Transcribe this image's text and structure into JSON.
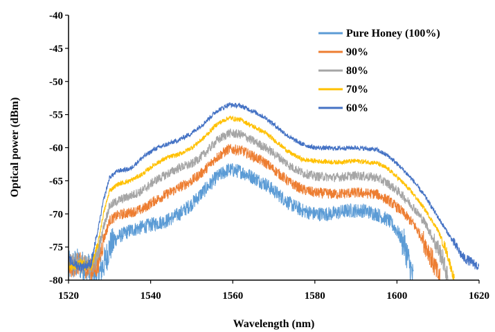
{
  "chart_data": {
    "type": "line",
    "xlabel": "Wavelength (nm)",
    "ylabel": "Optical power (dBm)",
    "xlim": [
      1520,
      1620
    ],
    "ylim": [
      -80,
      -40
    ],
    "xticks": [
      1520,
      1540,
      1560,
      1580,
      1600,
      1620
    ],
    "yticks": [
      -40,
      -45,
      -50,
      -55,
      -60,
      -65,
      -70,
      -75,
      -80
    ],
    "grid": false,
    "legend_position": "top-right",
    "series": [
      {
        "name": "Pure Honey (100%)",
        "color": "#5B9BD5",
        "noise": 1.1,
        "points": [
          [
            1520,
            -78
          ],
          [
            1522,
            -77.5
          ],
          [
            1524,
            -78
          ],
          [
            1526,
            -78.5
          ],
          [
            1527.5,
            -79
          ],
          [
            1529,
            -77
          ],
          [
            1530,
            -75
          ],
          [
            1532,
            -73.5
          ],
          [
            1535,
            -72.5
          ],
          [
            1538,
            -72
          ],
          [
            1541,
            -71.5
          ],
          [
            1544,
            -71
          ],
          [
            1547,
            -70
          ],
          [
            1550,
            -68.5
          ],
          [
            1553,
            -66.5
          ],
          [
            1556,
            -64.5
          ],
          [
            1559,
            -63.3
          ],
          [
            1562,
            -63.6
          ],
          [
            1565,
            -64.5
          ],
          [
            1568,
            -65.5
          ],
          [
            1571,
            -67
          ],
          [
            1574,
            -68.5
          ],
          [
            1577,
            -69.5
          ],
          [
            1580,
            -70
          ],
          [
            1584,
            -70
          ],
          [
            1588,
            -69.5
          ],
          [
            1592,
            -69.5
          ],
          [
            1595,
            -70
          ],
          [
            1598,
            -71
          ],
          [
            1600,
            -72.5
          ],
          [
            1602,
            -75
          ],
          [
            1603,
            -77.5
          ],
          [
            1604,
            -80
          ]
        ]
      },
      {
        "name": "90%",
        "color": "#ED7D31",
        "noise": 0.8,
        "points": [
          [
            1520,
            -78
          ],
          [
            1523,
            -77.5
          ],
          [
            1525.5,
            -78.5
          ],
          [
            1527,
            -78
          ],
          [
            1528.5,
            -74
          ],
          [
            1530,
            -71
          ],
          [
            1532,
            -70.2
          ],
          [
            1535,
            -69.8
          ],
          [
            1538,
            -69.3
          ],
          [
            1541,
            -68
          ],
          [
            1544,
            -67
          ],
          [
            1547,
            -66
          ],
          [
            1550,
            -65
          ],
          [
            1553,
            -63.5
          ],
          [
            1556,
            -61.5
          ],
          [
            1559,
            -60.2
          ],
          [
            1562,
            -60.4
          ],
          [
            1565,
            -61.3
          ],
          [
            1568,
            -62.3
          ],
          [
            1571,
            -63.8
          ],
          [
            1574,
            -65.3
          ],
          [
            1577,
            -66.3
          ],
          [
            1580,
            -66.8
          ],
          [
            1585,
            -67
          ],
          [
            1590,
            -66.8
          ],
          [
            1595,
            -67
          ],
          [
            1598,
            -68
          ],
          [
            1601,
            -69.5
          ],
          [
            1604,
            -71.5
          ],
          [
            1606,
            -73.5
          ],
          [
            1608,
            -76
          ],
          [
            1609.5,
            -78.5
          ],
          [
            1610.5,
            -80
          ]
        ]
      },
      {
        "name": "80%",
        "color": "#A5A5A5",
        "noise": 0.7,
        "points": [
          [
            1520,
            -77
          ],
          [
            1523,
            -77.5
          ],
          [
            1525.5,
            -78
          ],
          [
            1527,
            -76.5
          ],
          [
            1528.5,
            -72
          ],
          [
            1530,
            -68.8
          ],
          [
            1532,
            -68
          ],
          [
            1535,
            -67.3
          ],
          [
            1538,
            -66.5
          ],
          [
            1541,
            -65
          ],
          [
            1544,
            -64
          ],
          [
            1547,
            -63
          ],
          [
            1550,
            -62.5
          ],
          [
            1553,
            -61
          ],
          [
            1556,
            -59
          ],
          [
            1559,
            -57.8
          ],
          [
            1562,
            -58
          ],
          [
            1565,
            -59
          ],
          [
            1568,
            -60
          ],
          [
            1571,
            -61.3
          ],
          [
            1574,
            -62.8
          ],
          [
            1577,
            -63.8
          ],
          [
            1580,
            -64.3
          ],
          [
            1585,
            -64.5
          ],
          [
            1590,
            -64.2
          ],
          [
            1595,
            -64.5
          ],
          [
            1598,
            -65.5
          ],
          [
            1601,
            -67
          ],
          [
            1604,
            -69
          ],
          [
            1607,
            -71.5
          ],
          [
            1609,
            -74
          ],
          [
            1611,
            -76.5
          ],
          [
            1612.5,
            -80
          ]
        ]
      },
      {
        "name": "70%",
        "color": "#FFC000",
        "noise": 0.35,
        "points": [
          [
            1520,
            -78
          ],
          [
            1523,
            -77.5
          ],
          [
            1525.5,
            -78
          ],
          [
            1527,
            -75
          ],
          [
            1528.5,
            -70
          ],
          [
            1530,
            -66.5
          ],
          [
            1532,
            -65.5
          ],
          [
            1535,
            -65
          ],
          [
            1538,
            -64
          ],
          [
            1541,
            -62.5
          ],
          [
            1544,
            -61.5
          ],
          [
            1547,
            -61
          ],
          [
            1550,
            -60
          ],
          [
            1553,
            -58.5
          ],
          [
            1556,
            -56.5
          ],
          [
            1559,
            -55.5
          ],
          [
            1562,
            -55.8
          ],
          [
            1565,
            -56.8
          ],
          [
            1568,
            -57.8
          ],
          [
            1571,
            -59.3
          ],
          [
            1574,
            -60.8
          ],
          [
            1577,
            -61.8
          ],
          [
            1580,
            -62
          ],
          [
            1585,
            -62.2
          ],
          [
            1590,
            -62
          ],
          [
            1595,
            -62.3
          ],
          [
            1598,
            -63.3
          ],
          [
            1601,
            -65
          ],
          [
            1604,
            -67
          ],
          [
            1607,
            -69.5
          ],
          [
            1610,
            -72.5
          ],
          [
            1612,
            -75.5
          ],
          [
            1614,
            -80
          ]
        ]
      },
      {
        "name": "60%",
        "color": "#4472C4",
        "noise": 0.35,
        "points": [
          [
            1520,
            -77
          ],
          [
            1523,
            -78
          ],
          [
            1525.5,
            -77.5
          ],
          [
            1527,
            -73
          ],
          [
            1528.5,
            -68
          ],
          [
            1530,
            -64.5
          ],
          [
            1532,
            -63.5
          ],
          [
            1535,
            -63.2
          ],
          [
            1538,
            -61.5
          ],
          [
            1541,
            -60.2
          ],
          [
            1544,
            -59.5
          ],
          [
            1547,
            -58.8
          ],
          [
            1550,
            -57.8
          ],
          [
            1553,
            -56.3
          ],
          [
            1556,
            -54.5
          ],
          [
            1559,
            -53.5
          ],
          [
            1562,
            -53.7
          ],
          [
            1565,
            -54.5
          ],
          [
            1568,
            -55.5
          ],
          [
            1571,
            -57
          ],
          [
            1574,
            -58.5
          ],
          [
            1577,
            -59.5
          ],
          [
            1580,
            -60
          ],
          [
            1585,
            -60.1
          ],
          [
            1590,
            -60
          ],
          [
            1595,
            -60.3
          ],
          [
            1598,
            -61.3
          ],
          [
            1601,
            -63
          ],
          [
            1604,
            -65
          ],
          [
            1607,
            -67.5
          ],
          [
            1610,
            -70.5
          ],
          [
            1613,
            -73.5
          ],
          [
            1616,
            -76.5
          ],
          [
            1620,
            -78
          ]
        ]
      }
    ]
  }
}
